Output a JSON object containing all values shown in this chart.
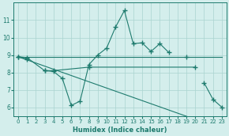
{
  "xlabel": "Humidex (Indice chaleur)",
  "x": [
    0,
    1,
    2,
    3,
    4,
    5,
    6,
    7,
    8,
    9,
    10,
    11,
    12,
    13,
    14,
    15,
    16,
    17,
    18,
    19,
    20,
    21,
    22,
    23
  ],
  "line_main": [
    8.9,
    8.75,
    null,
    8.1,
    8.05,
    7.65,
    6.1,
    6.35,
    8.45,
    9.0,
    9.4,
    10.6,
    11.55,
    9.65,
    9.7,
    9.2,
    9.65,
    9.15,
    null,
    8.9,
    null,
    7.4,
    6.45,
    6.0
  ],
  "line_upper": [
    8.9,
    8.9,
    8.9,
    8.9,
    8.9,
    8.9,
    8.9,
    8.9,
    8.9,
    8.9,
    8.9,
    8.9,
    8.9,
    8.9,
    8.9,
    8.9,
    8.9,
    8.9,
    8.9,
    8.9,
    8.9,
    8.9,
    8.9,
    8.9
  ],
  "line_lower": [
    8.9,
    8.72,
    8.54,
    8.36,
    8.18,
    8.0,
    7.82,
    7.64,
    7.46,
    7.28,
    7.1,
    6.92,
    6.74,
    6.56,
    6.38,
    6.2,
    6.02,
    5.84,
    5.66,
    5.48,
    5.3,
    5.12,
    4.94,
    4.76
  ],
  "line_mid": [
    8.9,
    8.85,
    null,
    8.1,
    8.1,
    null,
    null,
    null,
    8.3,
    null,
    null,
    null,
    null,
    null,
    null,
    null,
    null,
    null,
    null,
    null,
    8.3,
    null,
    null,
    null
  ],
  "line_color": "#1e7b6e",
  "bg_color": "#d4eeec",
  "grid_color": "#aad4d0",
  "ylim": [
    5.5,
    12.0
  ],
  "xlim": [
    -0.5,
    23.5
  ],
  "yticks": [
    6,
    7,
    8,
    9,
    10,
    11
  ],
  "xticks": [
    0,
    1,
    2,
    3,
    4,
    5,
    6,
    7,
    8,
    9,
    10,
    11,
    12,
    13,
    14,
    15,
    16,
    17,
    18,
    19,
    20,
    21,
    22,
    23
  ]
}
